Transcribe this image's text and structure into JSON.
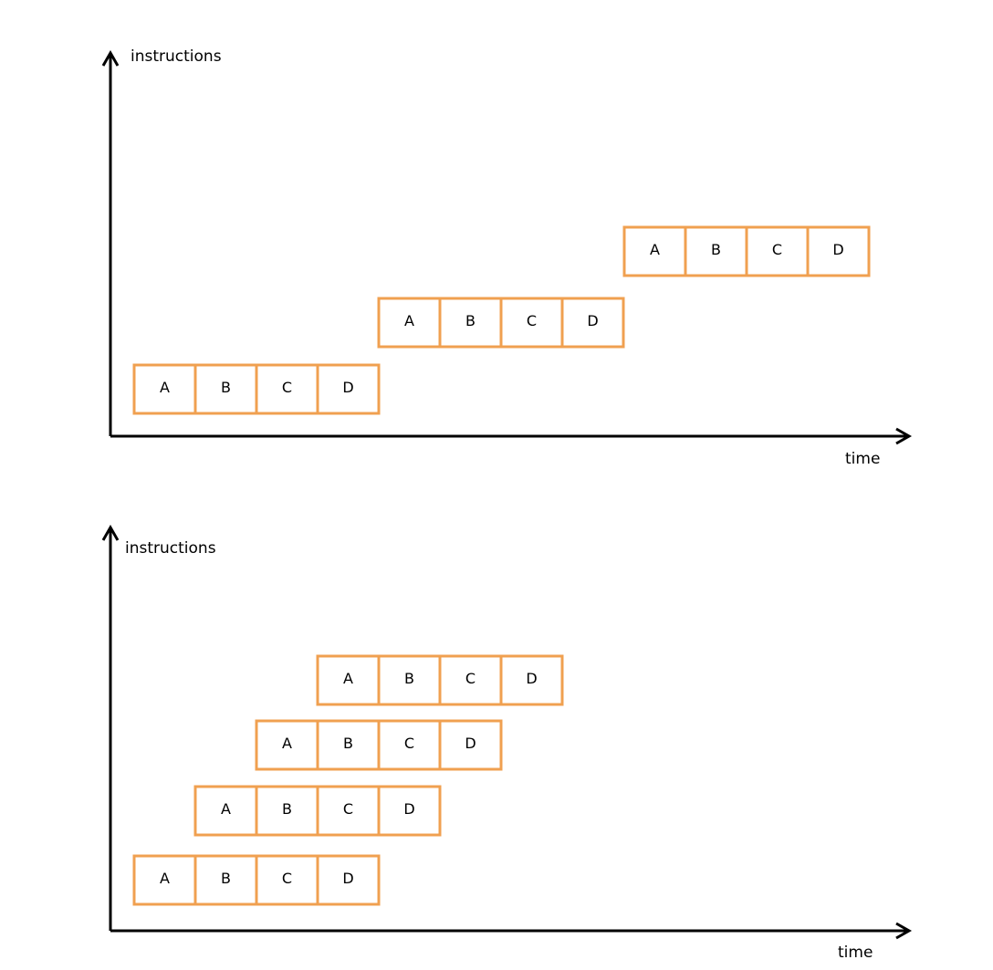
{
  "stage_color": "#f0a050",
  "diagrams": [
    {
      "y_label": "instructions",
      "x_label": "time",
      "instructions": [
        {
          "stages": [
            "A",
            "B",
            "C",
            "D"
          ]
        },
        {
          "stages": [
            "A",
            "B",
            "C",
            "D"
          ]
        },
        {
          "stages": [
            "A",
            "B",
            "C",
            "D"
          ]
        }
      ]
    },
    {
      "y_label": "instructions",
      "x_label": "time",
      "instructions": [
        {
          "stages": [
            "A",
            "B",
            "C",
            "D"
          ]
        },
        {
          "stages": [
            "A",
            "B",
            "C",
            "D"
          ]
        },
        {
          "stages": [
            "A",
            "B",
            "C",
            "D"
          ]
        },
        {
          "stages": [
            "A",
            "B",
            "C",
            "D"
          ]
        }
      ]
    }
  ]
}
